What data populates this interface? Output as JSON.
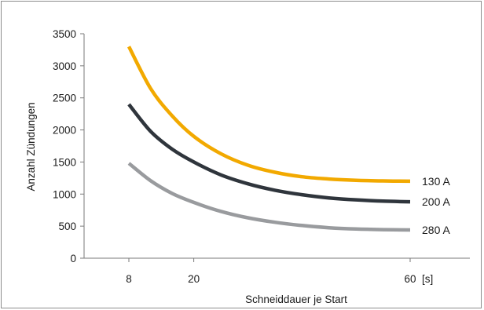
{
  "chart_data": {
    "type": "line",
    "title": "",
    "xlabel": "Schneiddauer je Start",
    "ylabel": "Anzahl Zündungen",
    "x_unit": "[s]",
    "xlim": [
      0,
      65
    ],
    "ylim": [
      0,
      3500
    ],
    "x_ticks": [
      8,
      20,
      60
    ],
    "y_ticks": [
      0,
      500,
      1000,
      1500,
      2000,
      2500,
      3000,
      3500
    ],
    "grid": false,
    "legend": "inline-right",
    "series": [
      {
        "name": "130 A",
        "color": "#f2a900",
        "x": [
          8,
          12,
          16,
          20,
          25,
          30,
          35,
          40,
          45,
          50,
          55,
          60
        ],
        "y": [
          3300,
          2650,
          2220,
          1900,
          1630,
          1450,
          1340,
          1270,
          1235,
          1215,
          1205,
          1200
        ]
      },
      {
        "name": "200 A",
        "color": "#2f353c",
        "x": [
          8,
          12,
          16,
          20,
          25,
          30,
          35,
          40,
          45,
          50,
          55,
          60
        ],
        "y": [
          2400,
          1980,
          1700,
          1500,
          1300,
          1160,
          1060,
          990,
          940,
          910,
          890,
          880
        ]
      },
      {
        "name": "280 A",
        "color": "#999b9e",
        "x": [
          8,
          12,
          16,
          20,
          25,
          30,
          35,
          40,
          45,
          50,
          55,
          60
        ],
        "y": [
          1480,
          1210,
          1010,
          870,
          730,
          630,
          560,
          510,
          475,
          455,
          445,
          440
        ]
      }
    ]
  }
}
